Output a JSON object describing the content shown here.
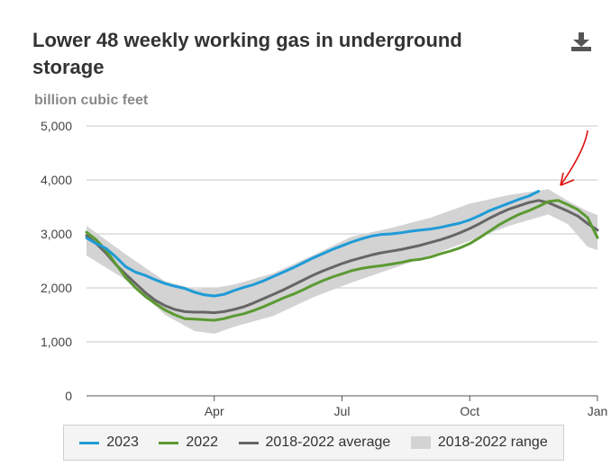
{
  "header": {
    "title": "Lower 48 weekly working gas in underground storage",
    "download_icon": "download-icon"
  },
  "chart_data": {
    "type": "line",
    "title": "Lower 48 weekly working gas in underground storage",
    "ylabel": "billion cubic feet",
    "xlabel": "",
    "ylim": [
      0,
      5000
    ],
    "yticks": [
      0,
      1000,
      2000,
      3000,
      4000,
      5000
    ],
    "ytick_labels": [
      "0",
      "1,000",
      "2,000",
      "3,000",
      "4,000",
      "5,000"
    ],
    "xlim": [
      1,
      53
    ],
    "xticks": [
      {
        "week": 14,
        "label": "Apr"
      },
      {
        "week": 27,
        "label": "Jul"
      },
      {
        "week": 40,
        "label": "Oct"
      },
      {
        "week": 53,
        "label": "Jan"
      }
    ],
    "grid": "horizontal",
    "legend_position": "bottom",
    "colors": {
      "s2023": "#1f9bd7",
      "s2022": "#5b9a32",
      "avg": "#666666",
      "range": "#d3d3d3",
      "annotation": "#e01010"
    },
    "series": [
      {
        "name": "2023",
        "weeks": [
          1,
          2,
          3,
          4,
          5,
          6,
          7,
          8,
          9,
          10,
          11,
          12,
          13,
          14,
          15,
          16,
          17,
          18,
          19,
          20,
          21,
          22,
          23,
          24,
          25,
          26,
          27,
          28,
          29,
          30,
          31,
          32,
          33,
          34,
          35,
          36,
          37,
          38,
          39,
          40,
          41,
          42,
          43,
          44,
          45,
          46,
          47
        ],
        "values": [
          2925,
          2820,
          2730,
          2570,
          2390,
          2290,
          2230,
          2150,
          2080,
          2030,
          1990,
          1920,
          1870,
          1850,
          1880,
          1950,
          2010,
          2060,
          2130,
          2210,
          2290,
          2370,
          2460,
          2550,
          2630,
          2710,
          2780,
          2850,
          2910,
          2960,
          2990,
          3000,
          3020,
          3050,
          3070,
          3090,
          3120,
          3160,
          3200,
          3260,
          3340,
          3430,
          3500,
          3570,
          3640,
          3700,
          3790
        ]
      },
      {
        "name": "2022",
        "weeks": [
          1,
          2,
          3,
          4,
          5,
          6,
          7,
          8,
          9,
          10,
          11,
          12,
          13,
          14,
          15,
          16,
          17,
          18,
          19,
          20,
          21,
          22,
          23,
          24,
          25,
          26,
          27,
          28,
          29,
          30,
          31,
          32,
          33,
          34,
          35,
          36,
          37,
          38,
          39,
          40,
          41,
          42,
          43,
          44,
          45,
          46,
          47,
          48,
          49,
          50,
          51,
          52,
          53
        ],
        "values": [
          3030,
          2890,
          2690,
          2440,
          2190,
          2000,
          1840,
          1710,
          1590,
          1500,
          1430,
          1420,
          1410,
          1400,
          1430,
          1480,
          1520,
          1580,
          1650,
          1730,
          1810,
          1880,
          1960,
          2050,
          2130,
          2200,
          2260,
          2320,
          2360,
          2390,
          2410,
          2440,
          2470,
          2510,
          2530,
          2570,
          2630,
          2680,
          2740,
          2820,
          2930,
          3050,
          3170,
          3270,
          3360,
          3430,
          3510,
          3600,
          3620,
          3540,
          3450,
          3300,
          2930
        ]
      },
      {
        "name": "2018-2022 average",
        "weeks": [
          1,
          2,
          3,
          4,
          5,
          6,
          7,
          8,
          9,
          10,
          11,
          12,
          13,
          14,
          15,
          16,
          17,
          18,
          19,
          20,
          21,
          22,
          23,
          24,
          25,
          26,
          27,
          28,
          29,
          30,
          31,
          32,
          33,
          34,
          35,
          36,
          37,
          38,
          39,
          40,
          41,
          42,
          43,
          44,
          45,
          46,
          47,
          48,
          49,
          50,
          51,
          52,
          53
        ],
        "values": [
          2970,
          2820,
          2640,
          2430,
          2250,
          2080,
          1910,
          1770,
          1670,
          1600,
          1560,
          1550,
          1550,
          1540,
          1560,
          1600,
          1650,
          1720,
          1800,
          1880,
          1960,
          2050,
          2140,
          2230,
          2310,
          2380,
          2450,
          2510,
          2560,
          2610,
          2650,
          2680,
          2710,
          2750,
          2790,
          2840,
          2890,
          2950,
          3020,
          3100,
          3190,
          3290,
          3380,
          3460,
          3520,
          3580,
          3620,
          3580,
          3500,
          3420,
          3330,
          3190,
          3070
        ]
      }
    ],
    "range": {
      "name": "2018-2022 range",
      "weeks": [
        1,
        5,
        9,
        12,
        14,
        16,
        20,
        24,
        28,
        32,
        36,
        40,
        44,
        48,
        50,
        52,
        53
      ],
      "min": [
        2600,
        2150,
        1500,
        1200,
        1150,
        1280,
        1480,
        1820,
        2100,
        2350,
        2600,
        2870,
        3150,
        3360,
        3180,
        2760,
        2700
      ],
      "max": [
        3150,
        2620,
        2120,
        1980,
        2000,
        2060,
        2270,
        2600,
        2950,
        3110,
        3300,
        3560,
        3720,
        3830,
        3610,
        3420,
        3350
      ]
    },
    "legend": [
      "2023",
      "2022",
      "2018-2022 average",
      "2018-2022 range"
    ],
    "annotation": "hand-drawn red arrow pointing at the 2023 line end"
  }
}
